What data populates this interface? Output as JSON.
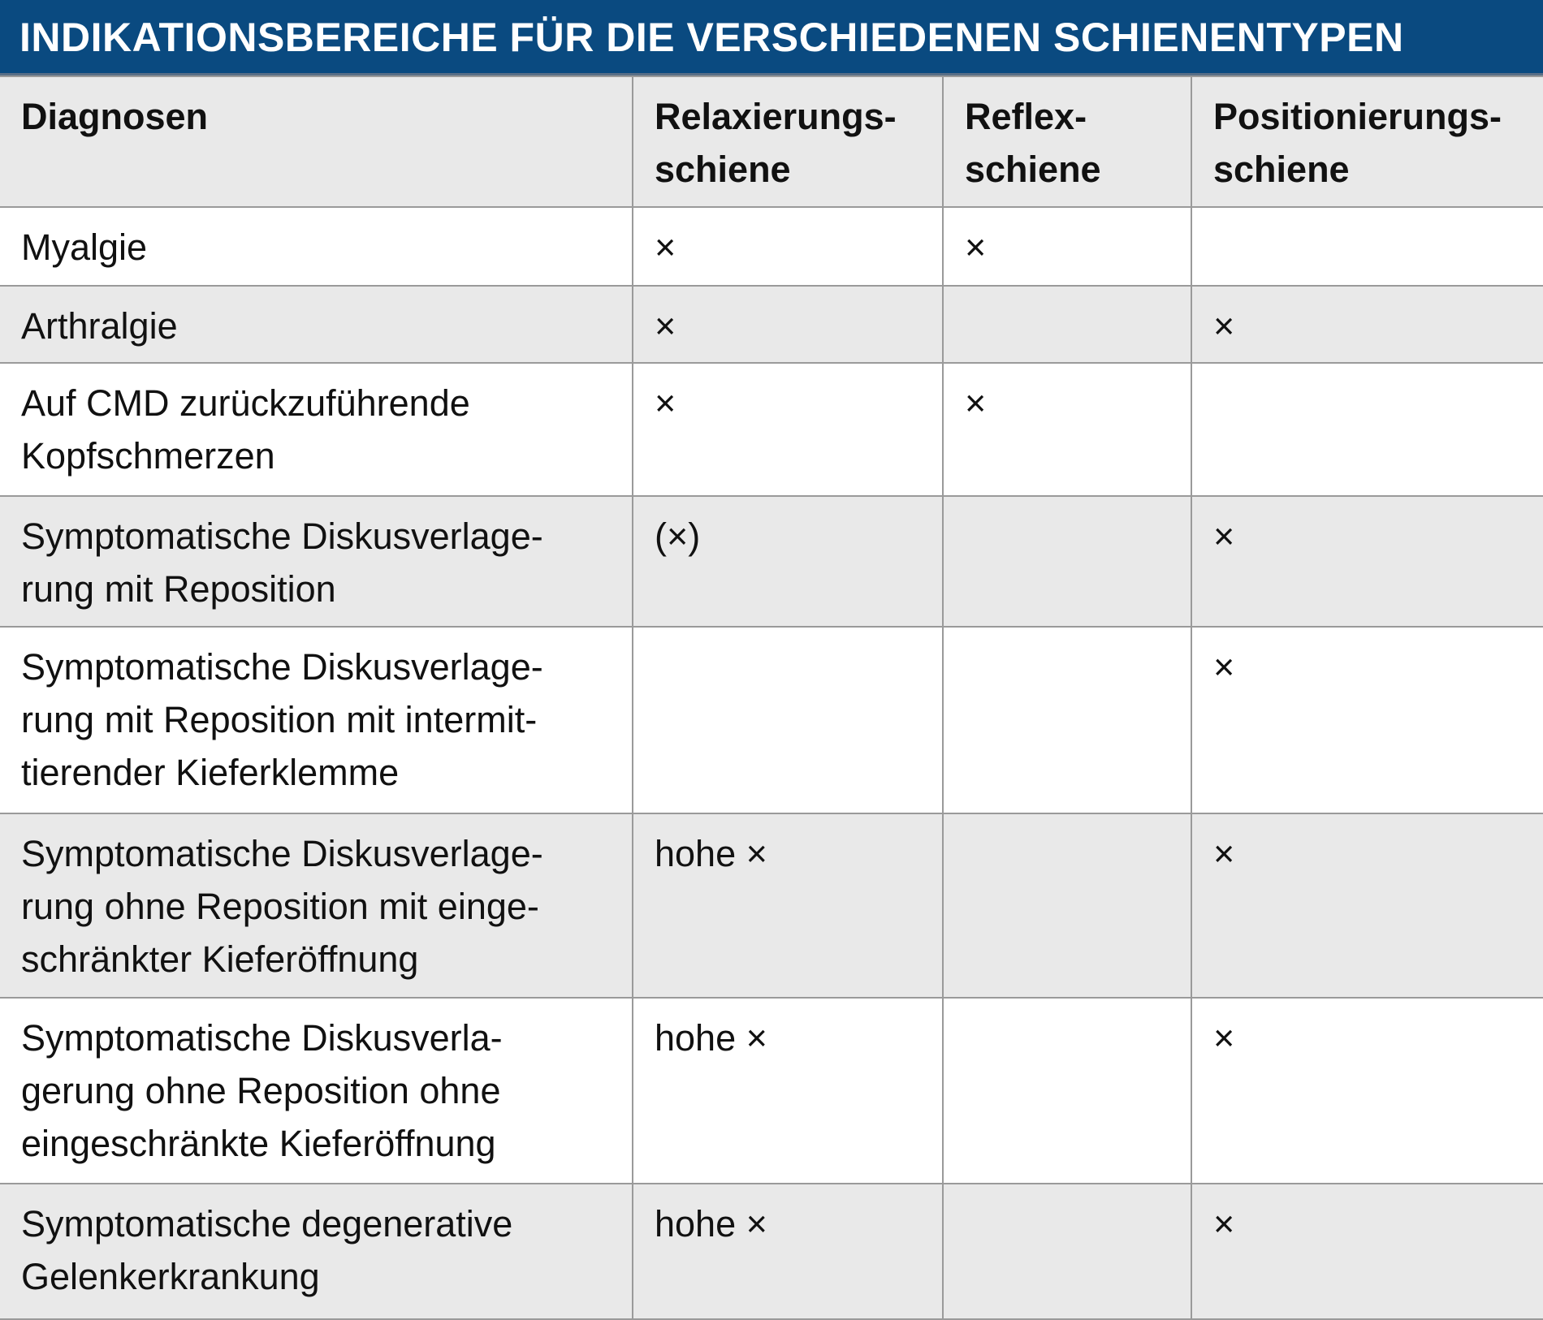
{
  "title": "INDIKATIONSBEREICHE FÜR DIE VERSCHIEDENEN SCHIENENTYPEN",
  "header": {
    "diagnosen": [
      "Diagnosen"
    ],
    "relax": [
      "Relaxierungs-",
      "schiene"
    ],
    "reflex": [
      "Reflex-",
      "schiene"
    ],
    "position": [
      "Positionierungs-",
      "schiene"
    ]
  },
  "rows": [
    {
      "diagnose": [
        "Myalgie"
      ],
      "relax": "×",
      "reflex": "×",
      "position": ""
    },
    {
      "diagnose": [
        "Arthralgie"
      ],
      "relax": "×",
      "reflex": "",
      "position": "×"
    },
    {
      "diagnose": [
        "Auf CMD zurückzuführende",
        "Kopfschmerzen"
      ],
      "relax": "×",
      "reflex": "×",
      "position": ""
    },
    {
      "diagnose": [
        "Symptomatische Diskusverlage-",
        "rung mit Reposition"
      ],
      "relax": "(×)",
      "reflex": "",
      "position": "×"
    },
    {
      "diagnose": [
        "Symptomatische Diskusverlage-",
        "rung mit Reposition mit intermit-",
        "tierender Kieferklemme"
      ],
      "relax": "",
      "reflex": "",
      "position": "×"
    },
    {
      "diagnose": [
        "Symptomatische Diskusverlage-",
        "rung ohne Reposition mit einge-",
        "schränkter Kieferöffnung"
      ],
      "relax": "hohe ×",
      "reflex": "",
      "position": "×"
    },
    {
      "diagnose": [
        "Symptomatische Diskusverla-",
        "gerung ohne Reposition ohne",
        "eingeschränkte Kieferöffnung"
      ],
      "relax": "hohe ×",
      "reflex": "",
      "position": "×"
    },
    {
      "diagnose": [
        "Symptomatische degenerative",
        "Gelenkerkrankung"
      ],
      "relax": "hohe ×",
      "reflex": "",
      "position": "×"
    }
  ],
  "colors": {
    "title_bg": "#0a4a80",
    "shaded_row": "#e9e9e9",
    "border": "#9a9a9a"
  }
}
